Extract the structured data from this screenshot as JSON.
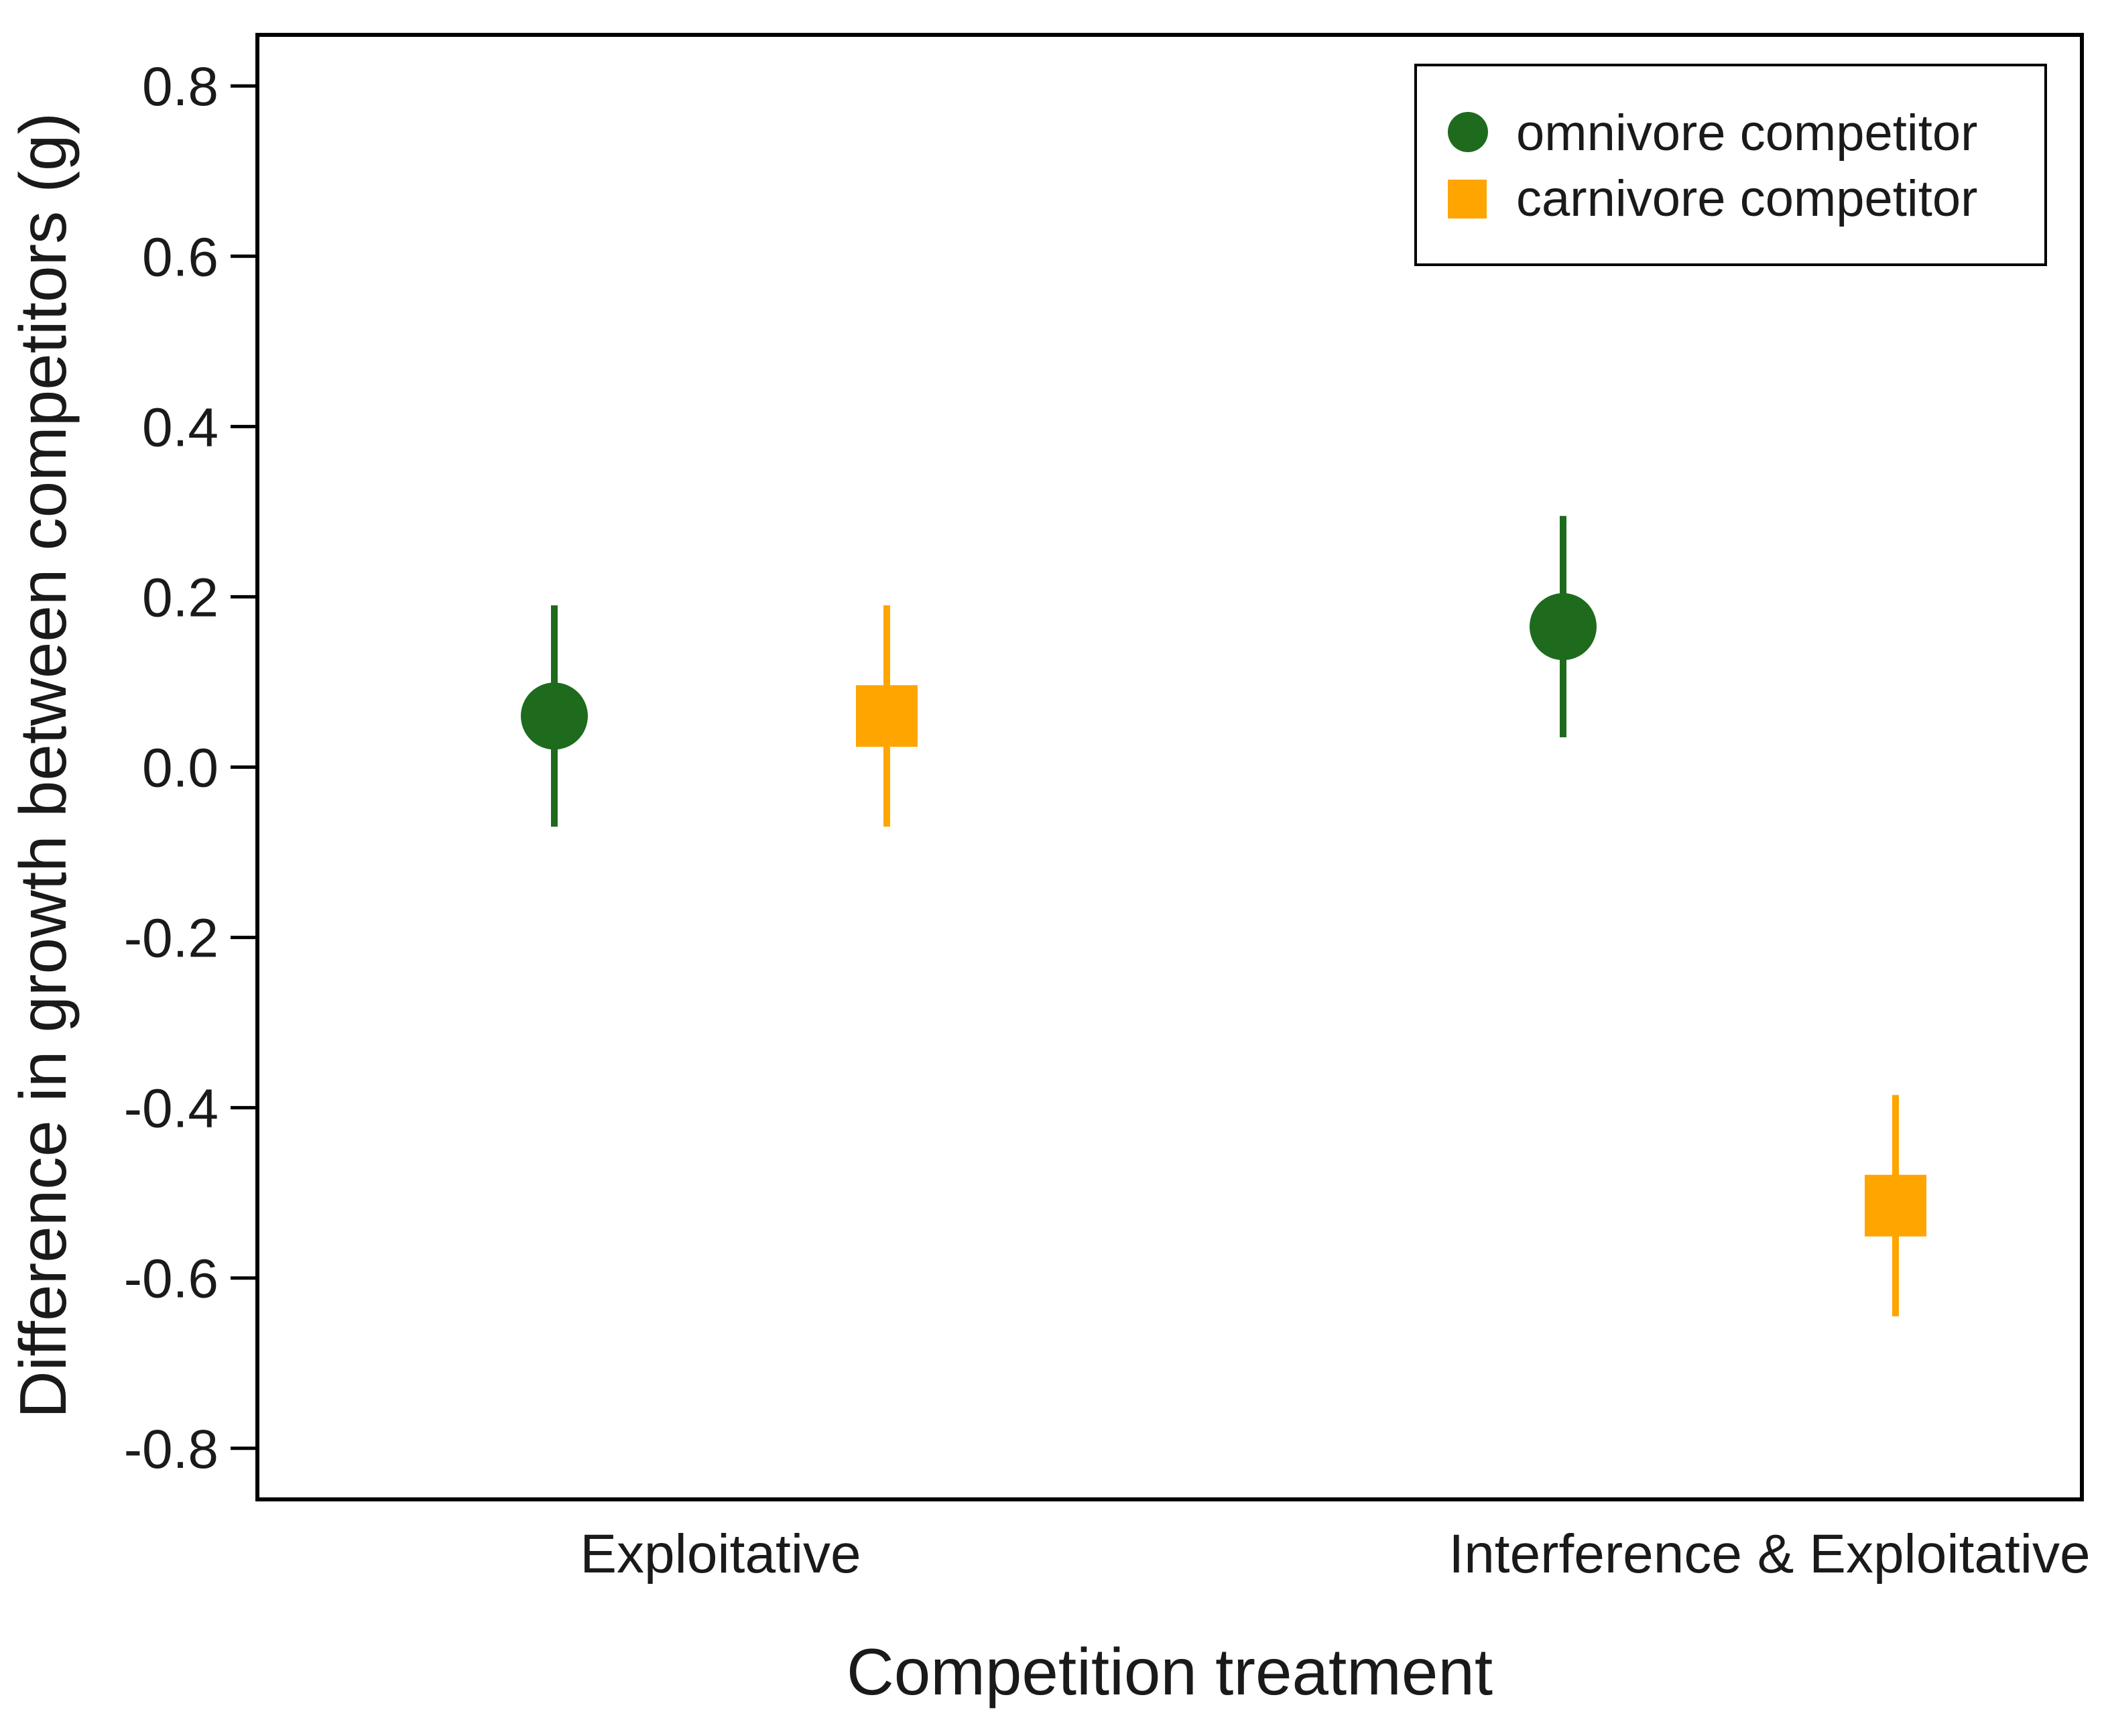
{
  "chart_data": {
    "type": "scatter",
    "title": "",
    "xlabel": "Competition treatment",
    "ylabel": "Difference in growth between competitors (g)",
    "categories": [
      "Exploitative",
      "Interference & Exploitative"
    ],
    "ylim": [
      -0.86,
      0.86
    ],
    "yticks": [
      "0.8",
      "0.6",
      "0.4",
      "0.2",
      "0.0",
      "-0.2",
      "-0.4",
      "-0.6",
      "-0.8"
    ],
    "ytick_values": [
      0.8,
      0.6,
      0.4,
      0.2,
      0.0,
      -0.2,
      -0.4,
      -0.6,
      -0.8
    ],
    "grid": false,
    "legend_position": "top-right",
    "series": [
      {
        "name": "omnivore competitor",
        "marker": "circle",
        "color": "#1e6b1e",
        "values": [
          0.06,
          0.165
        ],
        "lower": [
          -0.07,
          0.035
        ],
        "upper": [
          0.19,
          0.295
        ]
      },
      {
        "name": "carnivore competitor",
        "marker": "square",
        "color": "#ffa500",
        "values": [
          0.06,
          -0.515
        ],
        "lower": [
          -0.07,
          -0.645
        ],
        "upper": [
          0.19,
          -0.385
        ]
      }
    ]
  }
}
